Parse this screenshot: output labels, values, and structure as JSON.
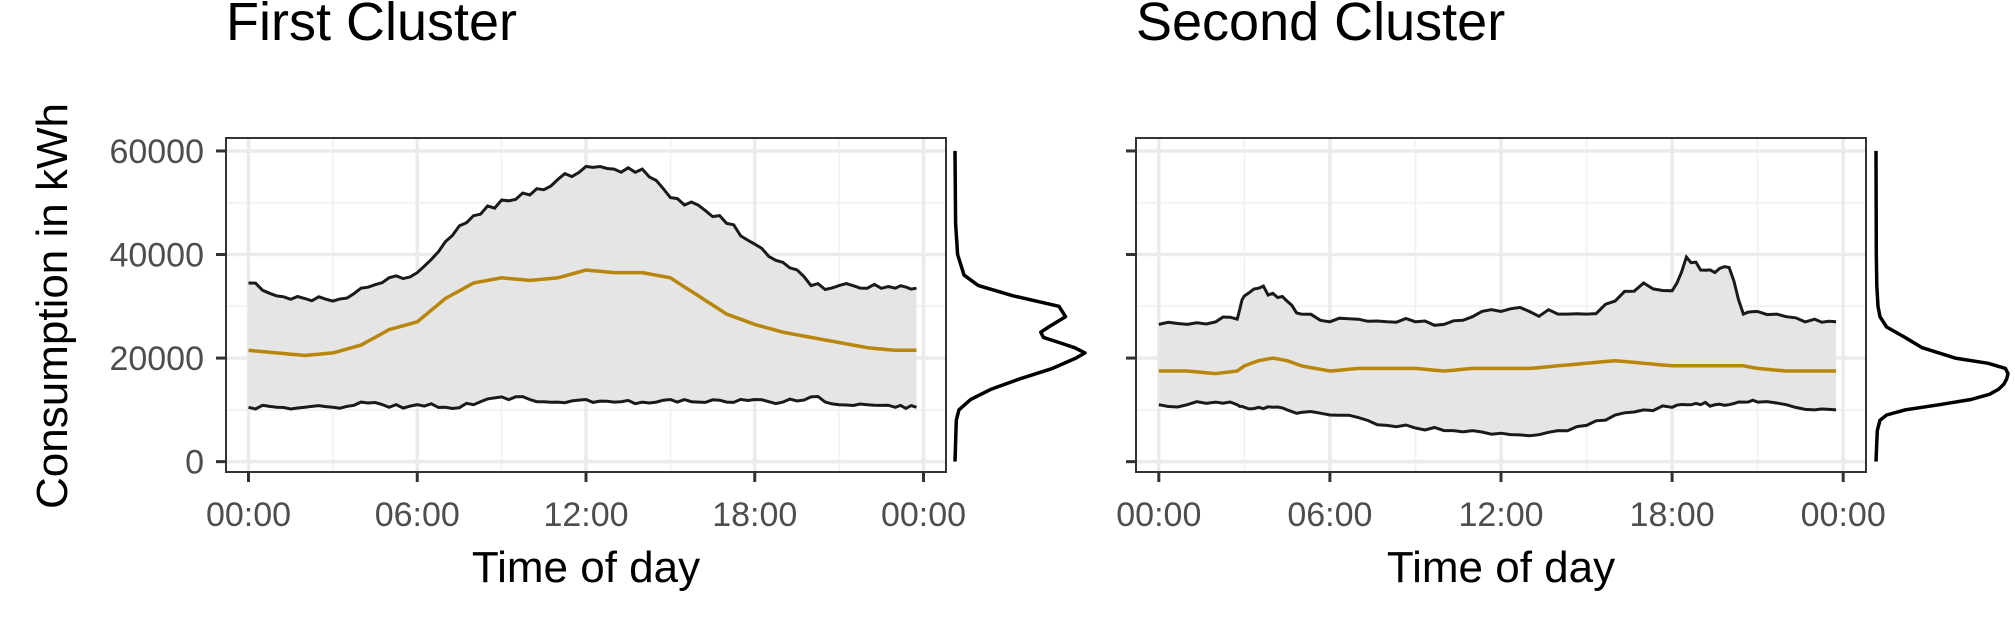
{
  "figure": {
    "ylabel": "Consumption in kWh"
  },
  "colors": {
    "band_fill": "#e5e5e5",
    "band_edge": "#1a1a1a",
    "median_line": "#b8860b",
    "grid_major": "#ebebeb",
    "grid_minor": "#f3f3f3",
    "panel_border": "#333333",
    "tick": "#333333",
    "density_line": "#000000"
  },
  "chart_data": [
    {
      "type": "area",
      "title": "First Cluster",
      "xlabel": "Time of day",
      "ylabel": "Consumption in kWh",
      "xlim": [
        -0.8,
        24.8
      ],
      "ylim": [
        -2000,
        62500
      ],
      "x_ticks": [
        0,
        6,
        12,
        18,
        24
      ],
      "x_tick_labels": [
        "00:00",
        "06:00",
        "12:00",
        "18:00",
        "00:00"
      ],
      "y_ticks": [
        0,
        20000,
        40000,
        60000
      ],
      "y_tick_labels": [
        "0",
        "20000",
        "40000",
        "60000"
      ],
      "grid": true,
      "x_hours": [
        0,
        1,
        2,
        3,
        4,
        5,
        6,
        7,
        8,
        9,
        10,
        11,
        12,
        13,
        14,
        15,
        16,
        17,
        18,
        19,
        20,
        21,
        22,
        23,
        23.75
      ],
      "upper": [
        34500,
        32000,
        31500,
        31000,
        33500,
        35500,
        36500,
        42500,
        47500,
        50500,
        51500,
        54500,
        57000,
        56500,
        56500,
        51000,
        49500,
        46000,
        42000,
        38500,
        34000,
        34000,
        33500,
        33500,
        33500
      ],
      "median": [
        21500,
        21000,
        20500,
        21000,
        22500,
        25500,
        27000,
        31500,
        34500,
        35500,
        35000,
        35500,
        37000,
        36500,
        36500,
        35500,
        32000,
        28500,
        26500,
        25000,
        24000,
        23000,
        22000,
        21500,
        21500
      ],
      "lower": [
        10500,
        10500,
        10500,
        10500,
        11500,
        10500,
        11000,
        10500,
        11000,
        12500,
        12000,
        11500,
        12000,
        11500,
        11500,
        12000,
        11500,
        11500,
        12000,
        11500,
        12500,
        11000,
        11000,
        10500,
        10500
      ],
      "density": {
        "description_values": "marginal density of consumption",
        "y": [
          0,
          8000,
          10000,
          12000,
          14000,
          16000,
          18000,
          20000,
          21000,
          22000,
          23000,
          24000,
          25000,
          26000,
          28000,
          30000,
          32000,
          34000,
          36000,
          40000,
          46000,
          60000
        ],
        "relative_density": [
          0,
          0.01,
          0.03,
          0.12,
          0.28,
          0.5,
          0.75,
          0.93,
          1.0,
          0.92,
          0.8,
          0.68,
          0.66,
          0.72,
          0.85,
          0.8,
          0.45,
          0.18,
          0.07,
          0.02,
          0.005,
          0
        ]
      }
    },
    {
      "type": "area",
      "title": "Second Cluster",
      "xlabel": "Time of day",
      "xlim": [
        -0.8,
        24.8
      ],
      "ylim": [
        -2000,
        62500
      ],
      "x_ticks": [
        0,
        6,
        12,
        18,
        24
      ],
      "x_tick_labels": [
        "00:00",
        "06:00",
        "12:00",
        "18:00",
        "00:00"
      ],
      "y_ticks": [
        0,
        20000,
        40000,
        60000
      ],
      "grid": true,
      "x_hours": [
        0,
        1,
        2,
        2.75,
        3,
        3.5,
        4,
        4.5,
        5,
        6,
        7,
        8,
        9,
        10,
        11,
        12,
        13,
        14,
        15,
        16,
        17,
        18,
        18.5,
        19,
        19.5,
        20,
        20.5,
        21,
        22,
        23,
        23.75
      ],
      "upper": [
        26500,
        26500,
        27000,
        27500,
        32000,
        33500,
        32500,
        31000,
        28500,
        27000,
        27500,
        27000,
        27000,
        26500,
        28000,
        29000,
        29000,
        28500,
        28500,
        31000,
        34500,
        33000,
        39500,
        37000,
        36500,
        37500,
        28500,
        29000,
        28000,
        27500,
        27000
      ],
      "median": [
        17500,
        17500,
        17000,
        17500,
        18500,
        19500,
        20000,
        19500,
        18500,
        17500,
        18000,
        18000,
        18000,
        17500,
        18000,
        18000,
        18000,
        18500,
        19000,
        19500,
        19000,
        18500,
        18500,
        18500,
        18500,
        18500,
        18500,
        18000,
        17500,
        17500,
        17500
      ],
      "lower": [
        11000,
        11000,
        11500,
        11000,
        10500,
        10500,
        10500,
        10000,
        9500,
        9000,
        8500,
        7000,
        6500,
        6000,
        6000,
        5500,
        5000,
        6000,
        7000,
        9000,
        10000,
        10500,
        11000,
        11000,
        11000,
        11000,
        11500,
        11500,
        11000,
        10000,
        10000
      ],
      "density": {
        "y": [
          0,
          6000,
          8000,
          9000,
          10000,
          11000,
          12000,
          13000,
          14000,
          15000,
          16000,
          17000,
          18000,
          19000,
          20000,
          22000,
          24000,
          26000,
          28000,
          30000,
          34000,
          40000,
          60000
        ],
        "relative_density": [
          0,
          0.01,
          0.03,
          0.08,
          0.22,
          0.48,
          0.72,
          0.86,
          0.93,
          0.97,
          0.99,
          1.0,
          0.98,
          0.85,
          0.6,
          0.35,
          0.22,
          0.08,
          0.03,
          0.015,
          0.006,
          0.002,
          0
        ]
      }
    }
  ]
}
